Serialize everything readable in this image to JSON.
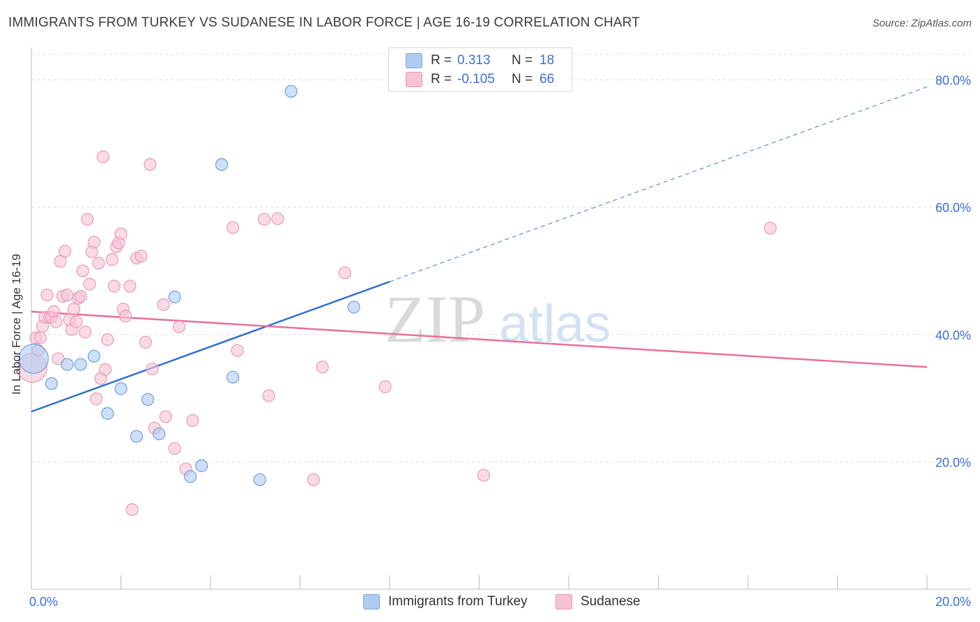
{
  "title": "IMMIGRANTS FROM TURKEY VS SUDANESE IN LABOR FORCE | AGE 16-19 CORRELATION CHART",
  "source_label": "Source:",
  "source_value": "ZipAtlas.com",
  "watermark": {
    "zip": "ZIP",
    "atlas": "atlas"
  },
  "legend": {
    "rows": [
      {
        "r_key": "R =",
        "r_val": "0.313",
        "n_key": "N =",
        "n_val": "18",
        "color": "#aecbf2",
        "border": "#7aa6e6"
      },
      {
        "r_key": "R =",
        "r_val": "-0.105",
        "n_key": "N =",
        "n_val": "66",
        "color": "#f7c3d3",
        "border": "#ec93b0"
      }
    ]
  },
  "colors": {
    "blue_fill": "#aecbf2",
    "blue_stroke": "#6e9fe0",
    "blue_line": "#2f6fd0",
    "pink_fill": "#f7c3d3",
    "pink_stroke": "#e99ab5",
    "pink_line": "#e8709a",
    "tick_text": "#3a6fd8",
    "grid": "#dddddd"
  },
  "chart_data": {
    "type": "scatter",
    "title": "IMMIGRANTS FROM TURKEY VS SUDANESE IN LABOR FORCE | AGE 16-19 CORRELATION CHART",
    "xlabel": "",
    "ylabel": "In Labor Force | Age 16-19",
    "xlim": [
      0,
      20
    ],
    "ylim": [
      0,
      84
    ],
    "x_tick_labels": [
      "0.0%",
      "20.0%"
    ],
    "y_ticks": [
      20,
      40,
      60,
      80
    ],
    "y_tick_labels": [
      "20.0%",
      "40.0%",
      "60.0%",
      "80.0%"
    ],
    "grid": true,
    "legend_position": "top-center",
    "series": [
      {
        "name": "Immigrants from Turkey",
        "R": 0.313,
        "N": 18,
        "trend": {
          "x0": 0,
          "y0": 27.9,
          "x_solid_end": 8,
          "x1": 20,
          "y1": 78.9
        },
        "points": [
          {
            "x": 0.05,
            "y": 36.2,
            "big": true
          },
          {
            "x": 0.45,
            "y": 32.3
          },
          {
            "x": 0.8,
            "y": 35.3
          },
          {
            "x": 1.1,
            "y": 35.3
          },
          {
            "x": 1.4,
            "y": 36.6
          },
          {
            "x": 1.7,
            "y": 27.6
          },
          {
            "x": 2.0,
            "y": 31.5
          },
          {
            "x": 2.35,
            "y": 24.0
          },
          {
            "x": 2.6,
            "y": 29.8
          },
          {
            "x": 2.85,
            "y": 24.4
          },
          {
            "x": 3.2,
            "y": 45.9
          },
          {
            "x": 3.55,
            "y": 17.7
          },
          {
            "x": 3.8,
            "y": 19.4
          },
          {
            "x": 4.25,
            "y": 66.7
          },
          {
            "x": 4.5,
            "y": 33.3
          },
          {
            "x": 5.1,
            "y": 17.2
          },
          {
            "x": 5.8,
            "y": 78.2
          },
          {
            "x": 7.2,
            "y": 44.3
          }
        ]
      },
      {
        "name": "Sudanese",
        "R": -0.105,
        "N": 66,
        "trend": {
          "x0": 0,
          "y0": 43.6,
          "x1": 20,
          "y1": 34.9
        },
        "points": [
          {
            "x": 0.02,
            "y": 34.8,
            "big": true
          },
          {
            "x": 0.1,
            "y": 39.5
          },
          {
            "x": 0.15,
            "y": 37.5
          },
          {
            "x": 0.2,
            "y": 39.5
          },
          {
            "x": 0.25,
            "y": 41.3
          },
          {
            "x": 0.3,
            "y": 42.7
          },
          {
            "x": 0.35,
            "y": 46.2
          },
          {
            "x": 0.4,
            "y": 42.7
          },
          {
            "x": 0.45,
            "y": 42.7
          },
          {
            "x": 0.5,
            "y": 43.6
          },
          {
            "x": 0.55,
            "y": 42.0
          },
          {
            "x": 0.6,
            "y": 36.2
          },
          {
            "x": 0.65,
            "y": 51.5
          },
          {
            "x": 0.7,
            "y": 46.0
          },
          {
            "x": 0.75,
            "y": 53.1
          },
          {
            "x": 0.8,
            "y": 46.2
          },
          {
            "x": 0.85,
            "y": 42.3
          },
          {
            "x": 0.9,
            "y": 40.8
          },
          {
            "x": 0.95,
            "y": 44.0
          },
          {
            "x": 1.0,
            "y": 42.0
          },
          {
            "x": 1.05,
            "y": 45.7
          },
          {
            "x": 1.1,
            "y": 46.0
          },
          {
            "x": 1.15,
            "y": 50.0
          },
          {
            "x": 1.2,
            "y": 40.4
          },
          {
            "x": 1.25,
            "y": 58.1
          },
          {
            "x": 1.3,
            "y": 47.9
          },
          {
            "x": 1.35,
            "y": 53.0
          },
          {
            "x": 1.4,
            "y": 54.5
          },
          {
            "x": 1.45,
            "y": 29.9
          },
          {
            "x": 1.5,
            "y": 51.2
          },
          {
            "x": 1.55,
            "y": 33.1
          },
          {
            "x": 1.65,
            "y": 34.5
          },
          {
            "x": 1.7,
            "y": 39.2
          },
          {
            "x": 1.6,
            "y": 67.9
          },
          {
            "x": 1.8,
            "y": 51.8
          },
          {
            "x": 1.85,
            "y": 47.6
          },
          {
            "x": 1.9,
            "y": 53.8
          },
          {
            "x": 1.95,
            "y": 54.4
          },
          {
            "x": 2.0,
            "y": 55.8
          },
          {
            "x": 2.05,
            "y": 44.0
          },
          {
            "x": 2.1,
            "y": 42.9
          },
          {
            "x": 2.2,
            "y": 47.6
          },
          {
            "x": 2.25,
            "y": 12.5
          },
          {
            "x": 2.35,
            "y": 52.0
          },
          {
            "x": 2.45,
            "y": 52.3
          },
          {
            "x": 2.55,
            "y": 38.8
          },
          {
            "x": 2.65,
            "y": 66.7
          },
          {
            "x": 2.7,
            "y": 34.6
          },
          {
            "x": 2.75,
            "y": 25.3
          },
          {
            "x": 2.95,
            "y": 44.7
          },
          {
            "x": 3.0,
            "y": 27.1
          },
          {
            "x": 3.2,
            "y": 22.1
          },
          {
            "x": 3.3,
            "y": 41.2
          },
          {
            "x": 3.45,
            "y": 18.9
          },
          {
            "x": 3.6,
            "y": 26.5
          },
          {
            "x": 4.5,
            "y": 56.8
          },
          {
            "x": 4.6,
            "y": 37.5
          },
          {
            "x": 5.2,
            "y": 58.1
          },
          {
            "x": 5.3,
            "y": 30.4
          },
          {
            "x": 5.5,
            "y": 58.2
          },
          {
            "x": 6.3,
            "y": 17.2
          },
          {
            "x": 6.5,
            "y": 34.9
          },
          {
            "x": 7.0,
            "y": 49.7
          },
          {
            "x": 7.9,
            "y": 31.8
          },
          {
            "x": 10.1,
            "y": 17.9
          },
          {
            "x": 16.5,
            "y": 56.7
          }
        ]
      }
    ]
  }
}
